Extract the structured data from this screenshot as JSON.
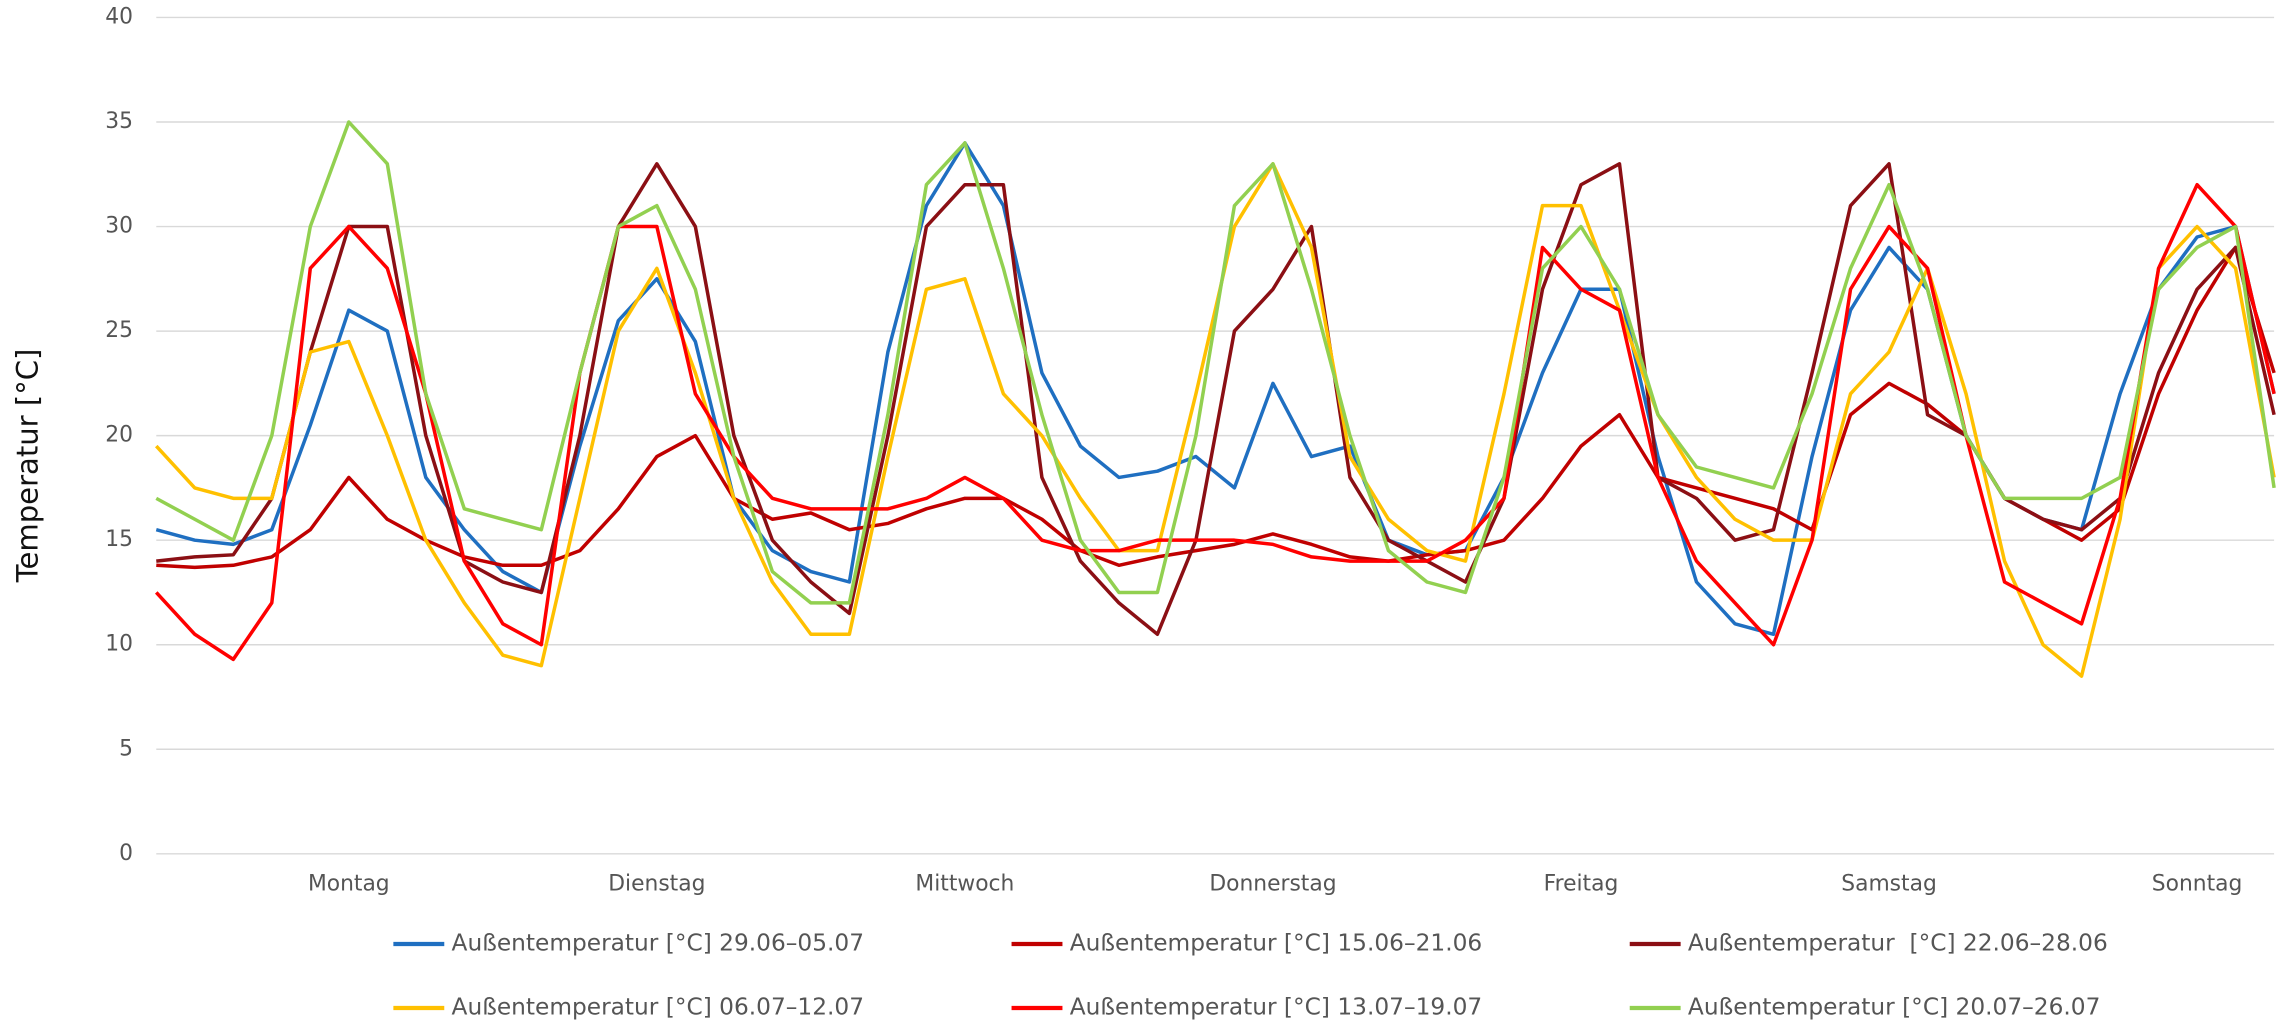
{
  "chart_data": {
    "type": "line",
    "ylabel": "Temperatur [°C]",
    "categories": [
      null,
      null,
      null,
      null,
      null,
      "Montag",
      null,
      null,
      null,
      null,
      null,
      null,
      null,
      "Dienstag",
      null,
      null,
      null,
      null,
      null,
      null,
      null,
      "Mittwoch",
      null,
      null,
      null,
      null,
      null,
      null,
      null,
      "Donnerstag",
      null,
      null,
      null,
      null,
      null,
      null,
      null,
      "Freitag",
      null,
      null,
      null,
      null,
      null,
      null,
      null,
      "Samstag",
      null,
      null,
      null,
      null,
      null,
      null,
      null,
      "Sonntag",
      null,
      null
    ],
    "ylim": [
      0,
      40
    ],
    "yticks": [
      0,
      5,
      10,
      15,
      20,
      25,
      30,
      35,
      40
    ],
    "grid": true,
    "series": [
      {
        "name": "Außentemperatur [°C] 29.06–05.07",
        "color": "#1f6fc1",
        "values": [
          15.5,
          15,
          14.8,
          15.5,
          20.5,
          26,
          25,
          18,
          15.5,
          13.5,
          12.5,
          19.5,
          25.5,
          27.5,
          24.5,
          17,
          14.5,
          13.5,
          13,
          24,
          31,
          34,
          31,
          23,
          19.5,
          18,
          18.3,
          19,
          17.5,
          22.5,
          19,
          19.5,
          15,
          14.3,
          14.5,
          18,
          23,
          27,
          27,
          19,
          13,
          11,
          10.5,
          19,
          26,
          29,
          27,
          20,
          17,
          16,
          15.5,
          22,
          27,
          29.5,
          30,
          22
        ]
      },
      {
        "name": "Außentemperatur [°C] 15.06–21.06",
        "color": "#c00000",
        "values": [
          13.8,
          13.7,
          13.8,
          14.2,
          15.5,
          18,
          16,
          15,
          14.2,
          13.8,
          13.8,
          14.5,
          16.5,
          19,
          20,
          17,
          16,
          16.3,
          15.5,
          15.8,
          16.5,
          17,
          17,
          16,
          14.5,
          13.8,
          14.2,
          14.5,
          14.8,
          15.3,
          14.8,
          14.2,
          14,
          14.3,
          14.5,
          15,
          17,
          19.5,
          21,
          18,
          17.5,
          17,
          16.5,
          15.5,
          21,
          22.5,
          21.5,
          20,
          17,
          16,
          15,
          16.5,
          22,
          26,
          29,
          23
        ]
      },
      {
        "name": "Außentemperatur  [°C] 22.06–28.06",
        "color": "#8b0f14",
        "values": [
          14,
          14.2,
          14.3,
          17,
          24,
          30,
          30,
          20,
          14,
          13,
          12.5,
          20,
          30,
          33,
          30,
          20,
          15,
          13,
          11.5,
          20,
          30,
          32,
          32,
          18,
          14,
          12,
          10.5,
          15,
          25,
          27,
          30,
          18,
          15,
          14,
          13,
          17,
          27,
          32,
          33,
          18,
          17,
          15,
          15.5,
          23,
          31,
          33,
          21,
          20,
          17,
          16,
          15.5,
          17,
          23,
          27,
          29,
          21
        ]
      },
      {
        "name": "Außentemperatur [°C] 06.07–12.07",
        "color": "#ffc000",
        "values": [
          19.5,
          17.5,
          17,
          17,
          24,
          24.5,
          20,
          15,
          12,
          9.5,
          9,
          17,
          25,
          28,
          23,
          17,
          13,
          10.5,
          10.5,
          19,
          27,
          27.5,
          22,
          20,
          17,
          14.5,
          14.5,
          22,
          30,
          33,
          29,
          19,
          16,
          14.5,
          14,
          22,
          31,
          31,
          26,
          21,
          18,
          16,
          15,
          15,
          22,
          24,
          28,
          22,
          14,
          10,
          8.5,
          16,
          28,
          30,
          28,
          18
        ]
      },
      {
        "name": "Außentemperatur [°C] 13.07–19.07",
        "color": "#ff0000",
        "values": [
          12.5,
          10.5,
          9.3,
          12,
          28,
          30,
          28,
          22,
          14,
          11,
          10,
          23,
          30,
          30,
          22,
          19,
          17,
          16.5,
          16.5,
          16.5,
          17,
          18,
          17,
          15,
          14.5,
          14.5,
          15,
          15,
          15,
          14.8,
          14.2,
          14,
          14,
          14,
          15,
          17,
          29,
          27,
          26,
          18,
          14,
          12,
          10,
          15,
          27,
          30,
          28,
          20,
          13,
          12,
          11,
          17,
          28,
          32,
          30,
          22
        ]
      },
      {
        "name": "Außentemperatur [°C] 20.07–26.07",
        "color": "#92d050",
        "values": [
          17,
          16,
          15,
          20,
          30,
          35,
          33,
          22,
          16.5,
          16,
          15.5,
          23,
          30,
          31,
          27,
          19,
          13.5,
          12,
          12,
          21,
          32,
          34,
          28,
          21,
          15,
          12.5,
          12.5,
          20,
          31,
          33,
          27,
          20,
          14.5,
          13,
          12.5,
          18,
          28,
          30,
          27,
          21,
          18.5,
          18,
          17.5,
          22,
          28,
          32,
          27,
          20,
          17,
          17,
          17,
          18,
          27,
          29,
          30,
          17.5
        ]
      }
    ]
  }
}
